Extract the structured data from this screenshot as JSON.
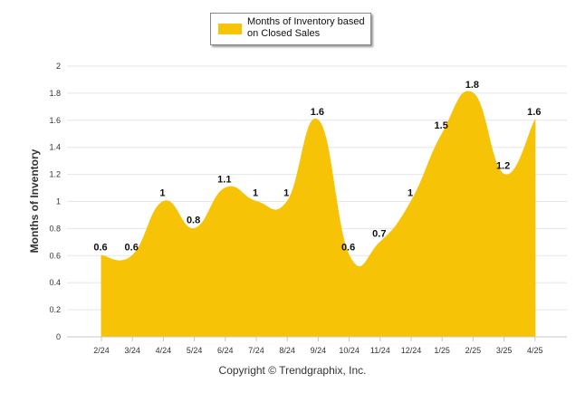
{
  "legend": {
    "label": "Months of Inventory based on Closed Sales",
    "color": "#F7C306"
  },
  "footer": {
    "copyright": "Copyright © Trendgraphix, Inc."
  },
  "chart_data": {
    "type": "area",
    "title": "",
    "xlabel": "",
    "ylabel": "Months of Inventory",
    "categories": [
      "2/24",
      "3/24",
      "4/24",
      "5/24",
      "6/24",
      "7/24",
      "8/24",
      "9/24",
      "10/24",
      "11/24",
      "12/24",
      "1/25",
      "2/25",
      "3/25",
      "4/25"
    ],
    "series": [
      {
        "name": "Months of Inventory based on Closed Sales",
        "values": [
          0.6,
          0.6,
          1,
          0.8,
          1.1,
          1,
          1,
          1.6,
          0.6,
          0.7,
          1,
          1.5,
          1.8,
          1.2,
          1.6
        ],
        "color": "#F7C306"
      }
    ],
    "ylim": [
      0,
      2
    ],
    "yticks": [
      "0",
      "0.2",
      "0.4",
      "0.6",
      "0.8",
      "1",
      "1.2",
      "1.4",
      "1.6",
      "1.8",
      "2"
    ],
    "grid": true,
    "legend_position": "top-center"
  }
}
